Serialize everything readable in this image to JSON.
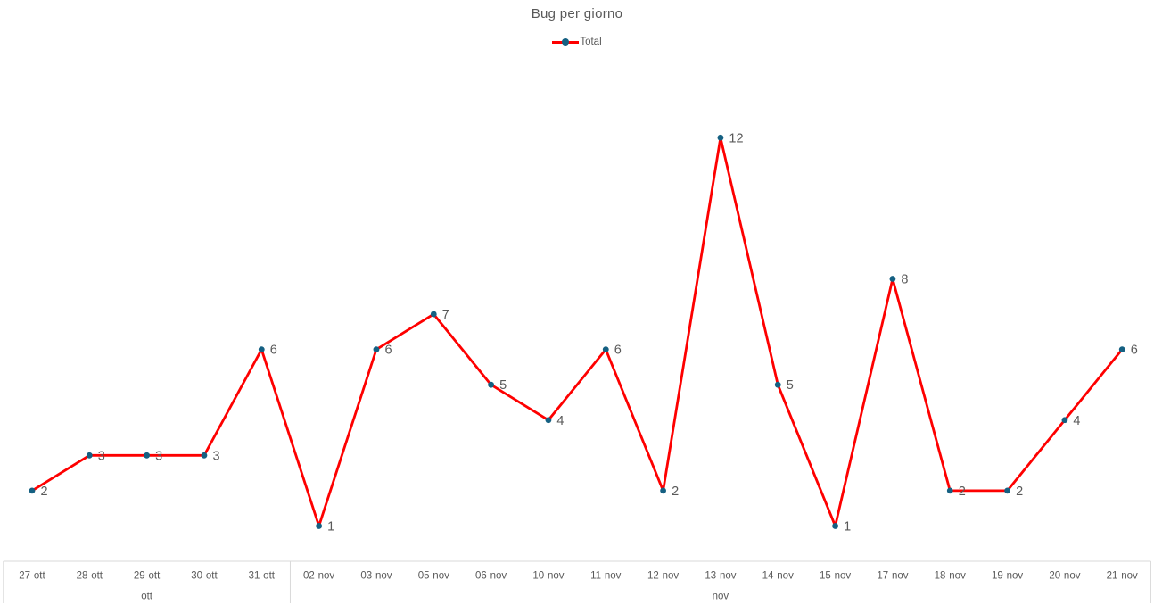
{
  "title": "Bug per giorno",
  "legend": {
    "position": "top",
    "items": [
      {
        "label": "Total"
      }
    ]
  },
  "colors": {
    "text": "#595959",
    "axis_line": "#d9d9d9",
    "background": "#ffffff"
  },
  "chart_data": {
    "type": "line",
    "title": "Bug per giorno",
    "xlabel": "",
    "ylabel": "",
    "grid": false,
    "y_axis_visible": false,
    "data_labels": true,
    "legend_position": "top",
    "ylim": [
      0,
      15.9
    ],
    "categories": [
      "27-ott",
      "28-ott",
      "29-ott",
      "30-ott",
      "31-ott",
      "02-nov",
      "03-nov",
      "05-nov",
      "06-nov",
      "10-nov",
      "11-nov",
      "12-nov",
      "13-nov",
      "14-nov",
      "15-nov",
      "17-nov",
      "18-nov",
      "19-nov",
      "20-nov",
      "21-nov"
    ],
    "x_groups": [
      {
        "label": "ott",
        "count": 5
      },
      {
        "label": "nov",
        "count": 15
      }
    ],
    "series": [
      {
        "name": "Total",
        "color": "#fe0000",
        "marker_color": "#156082",
        "values": [
          2,
          3,
          3,
          3,
          6,
          1,
          6,
          7,
          5,
          4,
          6,
          2,
          12,
          5,
          1,
          8,
          2,
          2,
          4,
          6
        ]
      }
    ]
  }
}
